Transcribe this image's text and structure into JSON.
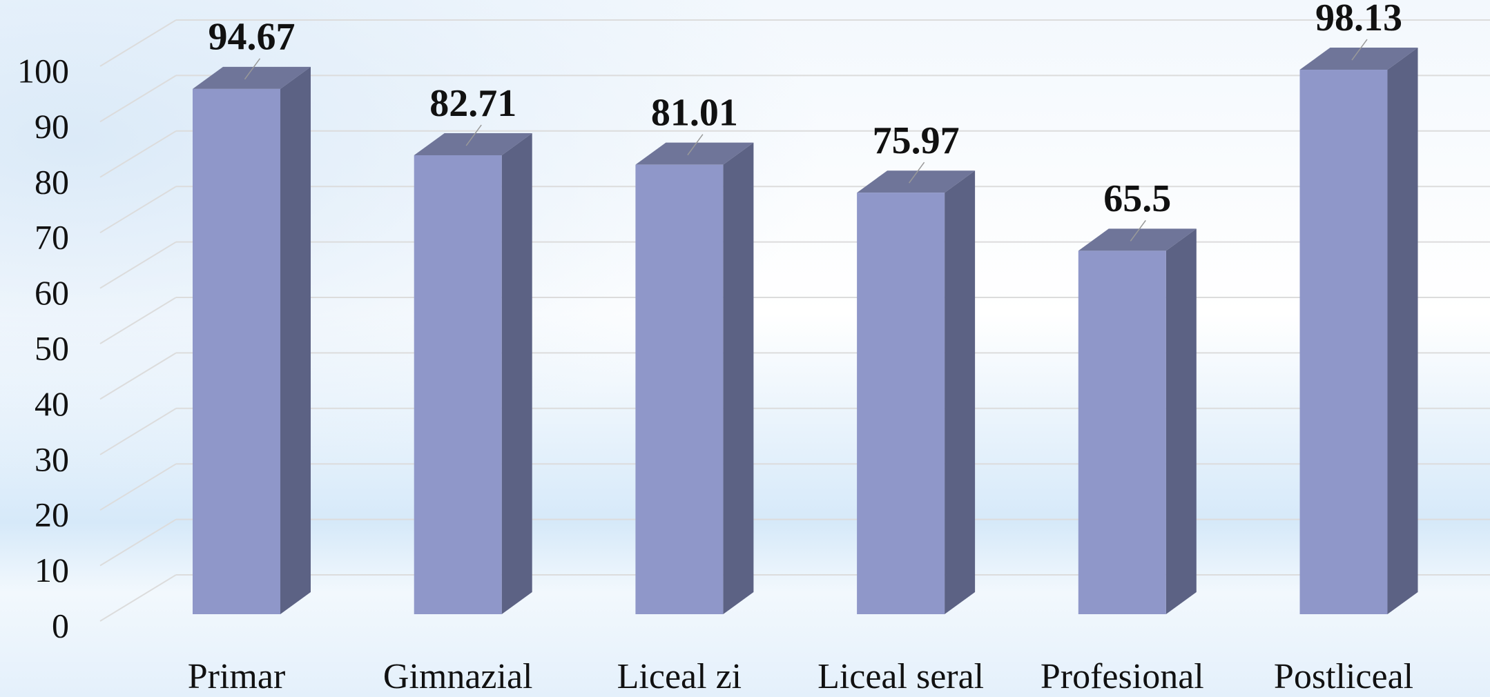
{
  "chart_data": {
    "type": "bar3d",
    "categories": [
      "Primar",
      "Gimnazial",
      "Liceal zi",
      "Liceal seral",
      "Profesional",
      "Postliceal"
    ],
    "values": [
      94.67,
      82.71,
      81.01,
      75.97,
      65.5,
      98.13
    ],
    "color": "#8f97c9",
    "ylim": [
      0,
      100
    ],
    "yticks": [
      0,
      10,
      20,
      30,
      40,
      50,
      60,
      70,
      80,
      90,
      100
    ],
    "grid": true
  }
}
